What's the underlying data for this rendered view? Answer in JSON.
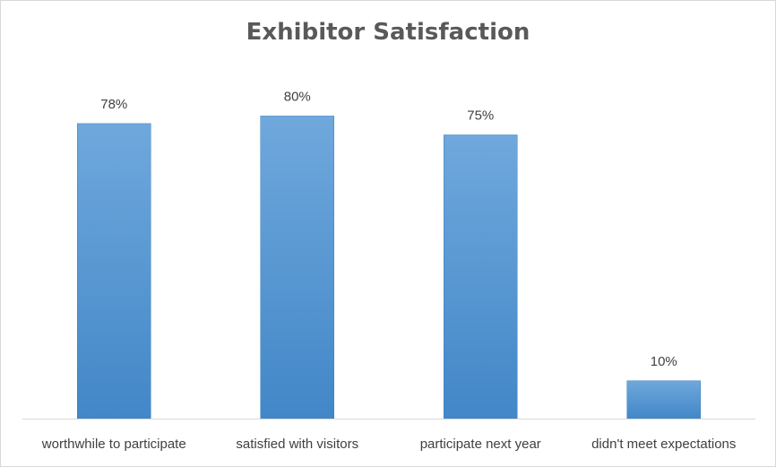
{
  "chart_data": {
    "type": "bar",
    "title": "Exhibitor Satisfaction",
    "categories": [
      "worthwhile to participate",
      "satisfied with visitors",
      "participate next year",
      "didn't meet expectations"
    ],
    "values": [
      78,
      80,
      75,
      10
    ],
    "value_labels": [
      "78%",
      "80%",
      "75%",
      "10%"
    ],
    "unit": "%",
    "ylim": [
      0,
      100
    ],
    "xlabel": "",
    "ylabel": "",
    "grid": false,
    "legend": "none",
    "colors": {
      "bar_top": "#6fa8dc",
      "bar_bottom": "#4287c8",
      "axis": "#d9d9d9",
      "text": "#404040",
      "title": "#595959"
    }
  }
}
